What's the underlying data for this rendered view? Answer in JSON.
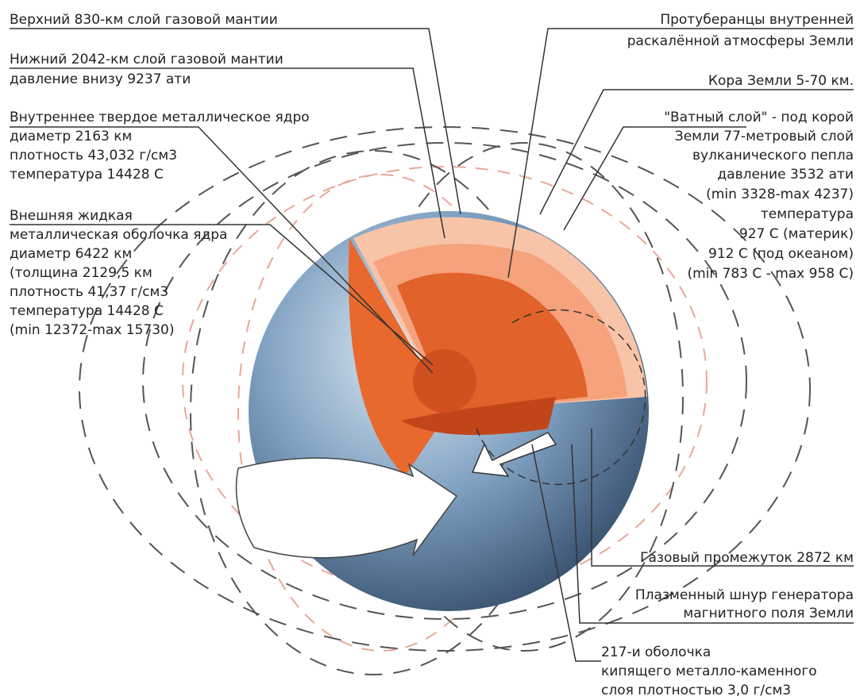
{
  "labels": [
    {
      "lines": [
        "Верхний 830-км слой газовой мантии"
      ]
    },
    {
      "lines": [
        "Нижний 2042-км слой газовой мантии",
        "давление внизу 9237 ати"
      ]
    },
    {
      "lines": [
        "Внутреннее твердое металлическое ядро",
        "диаметр 2163 км",
        "плотность 43,032 г/см3",
        "температура 14428 С"
      ]
    },
    {
      "lines": [
        "Внешняя жидкая",
        "металлическая оболочка ядра",
        "диаметр 6422 км",
        "(толщина 2129,5 км",
        "плотность 41,37 г/см3",
        "температура 14428 С",
        "(min 12372-max 15730)"
      ]
    },
    {
      "lines": [
        "Протуберанцы внутренней",
        "раскалённой атмосферы Земли"
      ]
    },
    {
      "lines": [
        "Кора Земли 5-70 км."
      ]
    },
    {
      "lines": [
        "\"Ватный слой\" - под корой",
        "Земли 77-метровый слой",
        "вулканического пепла",
        "давление 3532 ати",
        "(min 3328-max 4237)",
        "температура",
        "927 С (материк)",
        "912 С (под океаном)",
        "(min 783 С - max 958 С)"
      ]
    },
    {
      "lines": [
        "Газовый промежуток 2872 км"
      ]
    },
    {
      "lines": [
        "Плазменный шнур генератора",
        "магнитного поля Земли"
      ]
    },
    {
      "lines": [
        "217-и оболочка",
        "кипящего металло-каменного",
        "слоя плотностью 3,0 г/см3"
      ]
    }
  ]
}
